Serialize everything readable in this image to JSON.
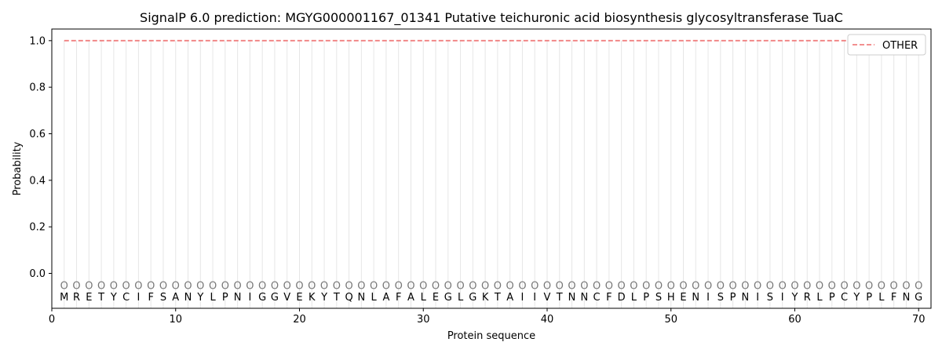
{
  "chart_data": {
    "type": "line",
    "title": "SignalP 6.0 prediction: MGYG000001167_01341 Putative teichuronic acid biosynthesis glycosyltransferase TuaC",
    "xlabel": "Protein sequence",
    "ylabel": "Probability",
    "xlim": [
      0,
      71
    ],
    "ylim": [
      -0.15,
      1.05
    ],
    "xticks": [
      0,
      10,
      20,
      30,
      40,
      50,
      60,
      70
    ],
    "yticks": [
      0.0,
      0.2,
      0.4,
      0.6,
      0.8,
      1.0
    ],
    "ytick_labels": [
      "0.0",
      "0.2",
      "0.4",
      "0.6",
      "0.8",
      "1.0"
    ],
    "sequence": [
      "M",
      "R",
      "E",
      "T",
      "Y",
      "C",
      "I",
      "F",
      "S",
      "A",
      "N",
      "Y",
      "L",
      "P",
      "N",
      "I",
      "G",
      "G",
      "V",
      "E",
      "K",
      "Y",
      "T",
      "Q",
      "N",
      "L",
      "A",
      "F",
      "A",
      "L",
      "E",
      "G",
      "L",
      "G",
      "K",
      "T",
      "A",
      "I",
      "I",
      "V",
      "T",
      "N",
      "N",
      "C",
      "F",
      "D",
      "L",
      "P",
      "S",
      "H",
      "E",
      "N",
      "I",
      "S",
      "P",
      "N",
      "I",
      "S",
      "I",
      "Y",
      "R",
      "L",
      "P",
      "C",
      "Y",
      "P",
      "L",
      "F",
      "N",
      "G"
    ],
    "state_label": "O",
    "series": [
      {
        "name": "OTHER",
        "color": "#f08080",
        "style": "dashed",
        "x_range": [
          1,
          70
        ],
        "value": 1.0
      }
    ],
    "legend_position": "top-right",
    "grid": "vertical lines at each residue"
  }
}
